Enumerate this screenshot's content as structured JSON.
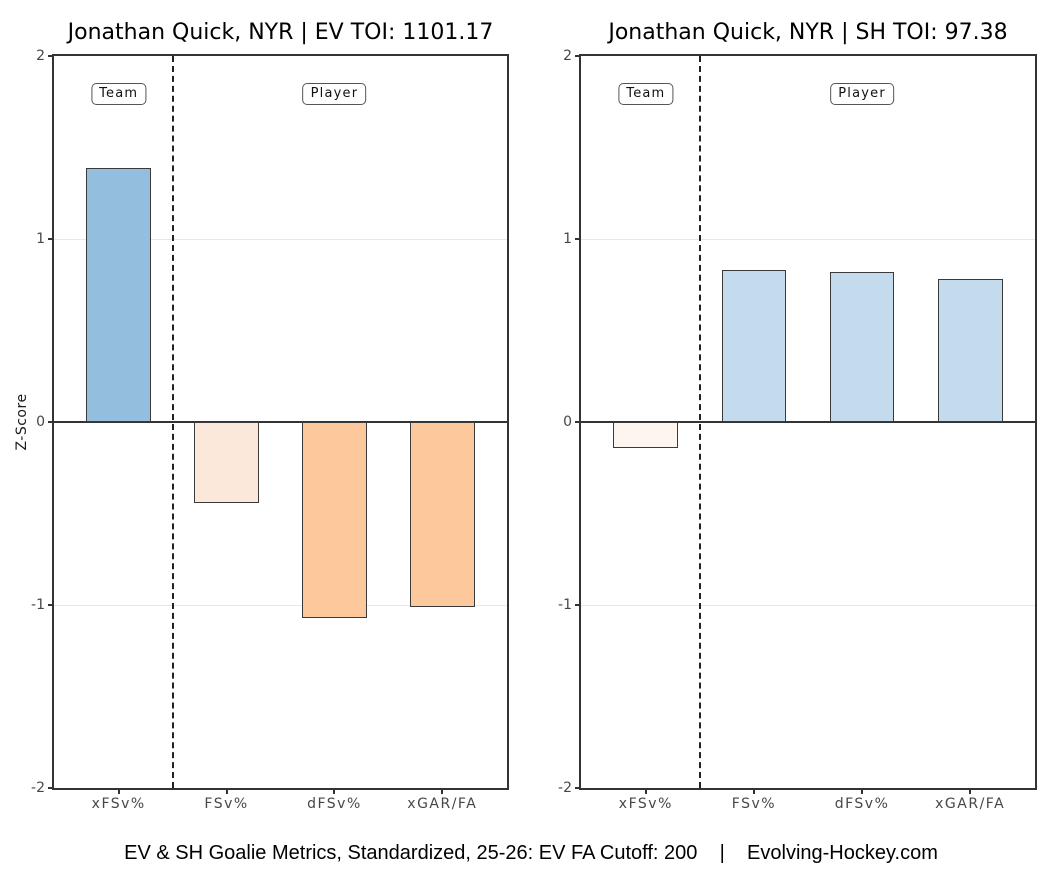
{
  "figure": {
    "ylabel": "Z-Score",
    "caption": "EV & SH Goalie Metrics, Standardized, 25-26: EV FA Cutoff: 200    |    Evolving-Hockey.com"
  },
  "style": {
    "bar_border": "#3a3a3a",
    "zero_line": "#333333",
    "gridline": "#e8e8e8",
    "panel_border": "#333333",
    "tick_label_color": "#474747",
    "divider_color": "#222222"
  },
  "chart_data": [
    {
      "type": "bar",
      "panel": "left",
      "title": "Jonathan Quick, NYR | EV TOI: 1101.17",
      "ylabel": "Z-Score",
      "ylim": [
        -2,
        2
      ],
      "yticks": [
        2,
        1,
        0,
        -1,
        -2
      ],
      "grid": "horizontal major lines at -1 and 1, dark zero line",
      "legend_position": "none",
      "categories": [
        "xFSv%",
        "FSv%",
        "dFSv%",
        "xGAR/FA"
      ],
      "values": [
        1.39,
        -0.44,
        -1.07,
        -1.01
      ],
      "bar_colors": [
        "#94bedd",
        "#fce8da",
        "#fdc99c",
        "#fdc99c"
      ],
      "divider_at": 1.5,
      "group_labels": [
        {
          "label": "Team",
          "at": 1
        },
        {
          "label": "Player",
          "at": 3
        }
      ]
    },
    {
      "type": "bar",
      "panel": "right",
      "title": "Jonathan Quick, NYR | SH TOI: 97.38",
      "ylabel": "Z-Score",
      "ylim": [
        -2,
        2
      ],
      "yticks": [
        2,
        1,
        0,
        -1,
        -2
      ],
      "grid": "horizontal major lines at -1 and 1, dark zero line",
      "legend_position": "none",
      "categories": [
        "xFSv%",
        "FSv%",
        "dFSv%",
        "xGAR/FA"
      ],
      "values": [
        -0.14,
        0.83,
        0.82,
        0.78
      ],
      "bar_colors": [
        "#fdf6f0",
        "#c4daed",
        "#c4daed",
        "#c4daed"
      ],
      "divider_at": 1.5,
      "group_labels": [
        {
          "label": "Team",
          "at": 1
        },
        {
          "label": "Player",
          "at": 3
        }
      ]
    }
  ]
}
